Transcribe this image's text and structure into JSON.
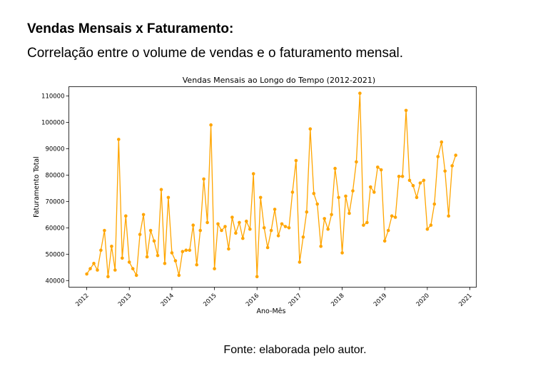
{
  "page": {
    "heading": "Vendas Mensais x Faturamento:",
    "subheading": "Correlação entre o volume de vendas e o faturamento mensal.",
    "caption": "Fonte: elaborada pelo autor."
  },
  "chart_data": {
    "type": "line",
    "title": "Vendas Mensais ao Longo do Tempo (2012-2021)",
    "xlabel": "Ano-Mês",
    "ylabel": "Faturamento Total",
    "x_tick_labels": [
      "2012",
      "2013",
      "2014",
      "2015",
      "2016",
      "2017",
      "2018",
      "2019",
      "2020",
      "2021"
    ],
    "y_ticks": [
      40000,
      50000,
      60000,
      70000,
      80000,
      90000,
      100000,
      110000
    ],
    "y_tick_labels": [
      "40000",
      "50000",
      "60000",
      "70000",
      "80000",
      "90000",
      "100000",
      "110000"
    ],
    "xlim": [
      2011.58,
      2021.15
    ],
    "ylim": [
      37500,
      113500
    ],
    "grid": false,
    "legend": "none",
    "color": "#ffa500",
    "series": [
      {
        "x_start": "2012-01",
        "frequency": "monthly",
        "values": [
          42500,
          44500,
          46500,
          44000,
          51500,
          59000,
          41500,
          53000,
          44000,
          93500,
          48500,
          64500,
          47000,
          44500,
          42000,
          57500,
          65000,
          49000,
          59000,
          55000,
          49500,
          74500,
          46500,
          71500,
          50500,
          47500,
          42000,
          51000,
          51500,
          51500,
          61000,
          46000,
          59000,
          78500,
          62000,
          99000,
          44500,
          61500,
          59000,
          60500,
          52000,
          64000,
          58000,
          62000,
          56000,
          62500,
          59500,
          80500,
          41500,
          71500,
          60000,
          52500,
          59000,
          67000,
          57000,
          61500,
          60500,
          60000,
          73500,
          85500,
          47000,
          56500,
          66000,
          97500,
          73000,
          69000,
          53000,
          63500,
          59500,
          65000,
          82500,
          71500,
          50500,
          72000,
          65500,
          74000,
          85000,
          111000,
          61000,
          62000,
          75500,
          73500,
          83000,
          82000,
          55000,
          59000,
          64500,
          64000,
          79500,
          79500,
          104500,
          78000,
          76000,
          71500,
          77000,
          78000,
          59500,
          61000,
          69000,
          87000,
          92500,
          81500,
          64500,
          83500,
          87500
        ]
      }
    ]
  }
}
